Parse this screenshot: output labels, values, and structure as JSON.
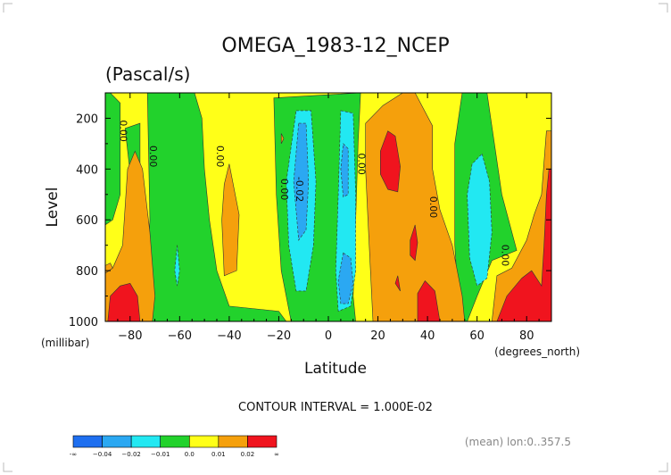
{
  "page": {
    "title": "OMEGA_1983-12_NCEP",
    "units": "(Pascal/s)",
    "contour_interval_text": "CONTOUR INTERVAL = 1.000E-02",
    "footnote": "(mean) lon:0..357.5"
  },
  "chart_data": {
    "type": "heatmap",
    "title": "OMEGA_1983-12_NCEP",
    "subtitle": "(Pascal/s)",
    "xlabel": "Latitude",
    "x_units": "(degrees_north)",
    "ylabel": "Level",
    "y_units": "(millibar)",
    "xlim": [
      -90,
      90
    ],
    "ylim": [
      1000,
      100
    ],
    "x_ticks": [
      {
        "value": -80,
        "label": "−80"
      },
      {
        "value": -60,
        "label": "−60"
      },
      {
        "value": -40,
        "label": "−40"
      },
      {
        "value": -20,
        "label": "−20"
      },
      {
        "value": 0,
        "label": "0"
      },
      {
        "value": 20,
        "label": "20"
      },
      {
        "value": 40,
        "label": "40"
      },
      {
        "value": 60,
        "label": "60"
      },
      {
        "value": 80,
        "label": "80"
      }
    ],
    "y_ticks": [
      {
        "value": 200,
        "label": "200"
      },
      {
        "value": 400,
        "label": "400"
      },
      {
        "value": 600,
        "label": "600"
      },
      {
        "value": 800,
        "label": "800"
      },
      {
        "value": 1000,
        "label": "1000"
      }
    ],
    "contour_interval": 0.01,
    "contour_labels": [
      {
        "lat": -84,
        "lev": 250,
        "text": "0.00"
      },
      {
        "lat": -72,
        "lev": 350,
        "text": "0.00"
      },
      {
        "lat": -45,
        "lev": 350,
        "text": "0.00"
      },
      {
        "lat": -19,
        "lev": 480,
        "text": "0.00"
      },
      {
        "lat": -13,
        "lev": 480,
        "text": "-0.02"
      },
      {
        "lat": 12,
        "lev": 380,
        "text": "0.00"
      },
      {
        "lat": 41,
        "lev": 550,
        "text": "0.00"
      },
      {
        "lat": 70,
        "lev": 740,
        "text": "0.00"
      }
    ],
    "colorbar": {
      "colors": [
        "#1e6ff0",
        "#2ba8f2",
        "#22e8f2",
        "#22d22c",
        "#ffff18",
        "#f5a00c",
        "#f0141e"
      ],
      "labels": [
        "-∞",
        "−0.04",
        "−0.02",
        "−0.01",
        "0.0",
        "0.01",
        "0.02",
        "∞"
      ]
    },
    "regions": [
      {
        "value": 0.005,
        "color": "#ffff18",
        "points": [
          [
            -90,
            100
          ],
          [
            90,
            100
          ],
          [
            90,
            1000
          ],
          [
            -90,
            1000
          ]
        ]
      },
      {
        "value": -0.005,
        "color": "#22d22c",
        "points": [
          [
            -88,
            100
          ],
          [
            -84,
            140
          ],
          [
            -84,
            500
          ],
          [
            -87,
            600
          ],
          [
            -90,
            620
          ],
          [
            -90,
            100
          ]
        ]
      },
      {
        "value": -0.005,
        "color": "#22d22c",
        "points": [
          [
            -82,
            240
          ],
          [
            -76,
            220
          ],
          [
            -76,
            650
          ],
          [
            -79,
            500
          ]
        ]
      },
      {
        "value": -0.005,
        "color": "#22d22c",
        "points": [
          [
            -73,
            100
          ],
          [
            -54,
            100
          ],
          [
            -51,
            200
          ],
          [
            -50,
            400
          ],
          [
            -48,
            600
          ],
          [
            -45,
            800
          ],
          [
            -40,
            940
          ],
          [
            -20,
            960
          ],
          [
            -17,
            1000
          ],
          [
            -72,
            1000
          ],
          [
            -73,
            800
          ],
          [
            -72,
            600
          ]
        ]
      },
      {
        "value": -0.005,
        "color": "#22d22c",
        "points": [
          [
            -22,
            120
          ],
          [
            13,
            100
          ],
          [
            12,
            300
          ],
          [
            11,
            600
          ],
          [
            10,
            900
          ],
          [
            11,
            1000
          ],
          [
            -15,
            1000
          ],
          [
            -19,
            800
          ],
          [
            -21,
            500
          ]
        ]
      },
      {
        "value": -0.005,
        "color": "#22d22c",
        "points": [
          [
            54,
            100
          ],
          [
            64,
            100
          ],
          [
            70,
            500
          ],
          [
            76,
            720
          ],
          [
            66,
            760
          ],
          [
            60,
            900
          ],
          [
            56,
            1000
          ],
          [
            53,
            1000
          ],
          [
            51,
            700
          ],
          [
            51,
            300
          ]
        ]
      },
      {
        "value": -0.015,
        "color": "#22e8f2",
        "points": [
          [
            -13,
            170
          ],
          [
            -7,
            170
          ],
          [
            -5,
            450
          ],
          [
            -6,
            700
          ],
          [
            -9,
            880
          ],
          [
            -13,
            880
          ],
          [
            -16,
            700
          ],
          [
            -17,
            450
          ]
        ]
      },
      {
        "value": -0.015,
        "color": "#22e8f2",
        "points": [
          [
            5,
            170
          ],
          [
            10,
            180
          ],
          [
            11,
            500
          ],
          [
            11,
            800
          ],
          [
            9,
            940
          ],
          [
            4,
            960
          ],
          [
            3,
            800
          ],
          [
            4,
            500
          ]
        ]
      },
      {
        "value": -0.015,
        "color": "#22e8f2",
        "points": [
          [
            62,
            340
          ],
          [
            65,
            450
          ],
          [
            66,
            650
          ],
          [
            64,
            830
          ],
          [
            60,
            860
          ],
          [
            57,
            750
          ],
          [
            56,
            500
          ],
          [
            58,
            380
          ]
        ]
      },
      {
        "value": -0.015,
        "color": "#22e8f2",
        "points": [
          [
            -61,
            700
          ],
          [
            -60,
            800
          ],
          [
            -61,
            860
          ],
          [
            -62,
            800
          ]
        ]
      },
      {
        "value": -0.025,
        "color": "#2ba8f2",
        "points": [
          [
            -12,
            220
          ],
          [
            -9,
            220
          ],
          [
            -8,
            450
          ],
          [
            -9,
            640
          ],
          [
            -12,
            680
          ],
          [
            -14,
            450
          ]
        ]
      },
      {
        "value": -0.025,
        "color": "#2ba8f2",
        "points": [
          [
            6,
            300
          ],
          [
            8,
            320
          ],
          [
            8,
            500
          ],
          [
            6,
            510
          ],
          [
            5,
            400
          ]
        ]
      },
      {
        "value": -0.025,
        "color": "#2ba8f2",
        "points": [
          [
            6,
            730
          ],
          [
            9,
            750
          ],
          [
            10,
            850
          ],
          [
            8,
            930
          ],
          [
            5,
            930
          ],
          [
            4,
            840
          ]
        ]
      },
      {
        "value": 0.015,
        "color": "#f5a00c",
        "points": [
          [
            -90,
            780
          ],
          [
            -88,
            770
          ],
          [
            -86,
            810
          ],
          [
            -90,
            810
          ]
        ]
      },
      {
        "value": 0.015,
        "color": "#f5a00c",
        "points": [
          [
            -81,
            400
          ],
          [
            -78,
            330
          ],
          [
            -75,
            400
          ],
          [
            -72,
            650
          ],
          [
            -70,
            900
          ],
          [
            -71,
            1000
          ],
          [
            -90,
            1000
          ],
          [
            -90,
            810
          ],
          [
            -87,
            790
          ],
          [
            -83,
            700
          ]
        ]
      },
      {
        "value": 0.015,
        "color": "#f5a00c",
        "points": [
          [
            -42,
            460
          ],
          [
            -40,
            380
          ],
          [
            -36,
            580
          ],
          [
            -37,
            800
          ],
          [
            -42,
            820
          ],
          [
            -43,
            600
          ]
        ]
      },
      {
        "value": 0.015,
        "color": "#f5a00c",
        "points": [
          [
            15,
            220
          ],
          [
            22,
            150
          ],
          [
            30,
            100
          ],
          [
            35,
            100
          ],
          [
            42,
            230
          ],
          [
            42,
            400
          ],
          [
            45,
            560
          ],
          [
            50,
            700
          ],
          [
            54,
            900
          ],
          [
            55,
            1000
          ],
          [
            18,
            1000
          ],
          [
            17,
            800
          ],
          [
            16,
            600
          ],
          [
            15,
            400
          ]
        ]
      },
      {
        "value": 0.015,
        "color": "#f5a00c",
        "points": [
          [
            -19,
            260
          ],
          [
            -18,
            280
          ],
          [
            -19,
            300
          ]
        ]
      },
      {
        "value": 0.015,
        "color": "#f5a00c",
        "points": [
          [
            86,
            500
          ],
          [
            88,
            250
          ],
          [
            90,
            250
          ],
          [
            90,
            1000
          ],
          [
            66,
            1000
          ],
          [
            68,
            820
          ],
          [
            74,
            790
          ],
          [
            80,
            680
          ],
          [
            83,
            580
          ]
        ]
      },
      {
        "value": 0.025,
        "color": "#f0141e",
        "points": [
          [
            -88,
            900
          ],
          [
            -84,
            860
          ],
          [
            -80,
            850
          ],
          [
            -77,
            900
          ],
          [
            -76,
            1000
          ],
          [
            -89,
            1000
          ]
        ]
      },
      {
        "value": 0.025,
        "color": "#f0141e",
        "points": [
          [
            21,
            330
          ],
          [
            24,
            250
          ],
          [
            27,
            270
          ],
          [
            29,
            390
          ],
          [
            28,
            490
          ],
          [
            24,
            480
          ],
          [
            21,
            420
          ]
        ]
      },
      {
        "value": 0.025,
        "color": "#f0141e",
        "points": [
          [
            33,
            680
          ],
          [
            35,
            620
          ],
          [
            36,
            690
          ],
          [
            35,
            760
          ],
          [
            33,
            740
          ]
        ]
      },
      {
        "value": 0.025,
        "color": "#f0141e",
        "points": [
          [
            27,
            850
          ],
          [
            28,
            820
          ],
          [
            29,
            880
          ]
        ]
      },
      {
        "value": 0.025,
        "color": "#f0141e",
        "points": [
          [
            36,
            890
          ],
          [
            39,
            840
          ],
          [
            43,
            880
          ],
          [
            45,
            1000
          ],
          [
            36,
            1000
          ]
        ]
      },
      {
        "value": 0.025,
        "color": "#f0141e",
        "points": [
          [
            88,
            500
          ],
          [
            89,
            400
          ],
          [
            90,
            400
          ],
          [
            90,
            1000
          ],
          [
            68,
            1000
          ],
          [
            72,
            900
          ],
          [
            78,
            830
          ],
          [
            82,
            800
          ],
          [
            86,
            860
          ],
          [
            87,
            700
          ]
        ]
      }
    ]
  }
}
